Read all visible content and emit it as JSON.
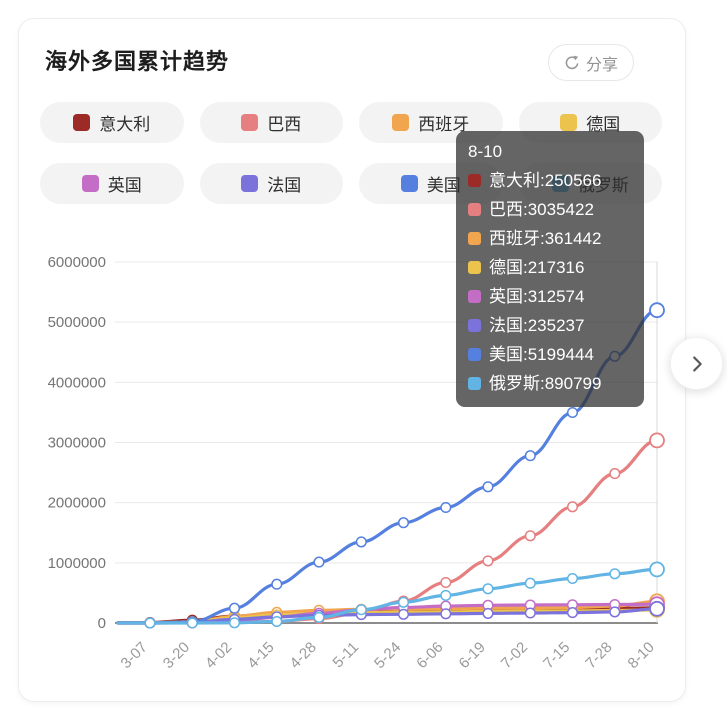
{
  "card": {
    "title": "海外多国累计趋势",
    "share": {
      "label": "分享",
      "icon": "circular-arrow-share-icon"
    }
  },
  "legend": {
    "items": [
      "意大利",
      "巴西",
      "西班牙",
      "德国",
      "英国",
      "法国",
      "美国",
      "俄罗斯"
    ]
  },
  "tooltip": {
    "title": "8-10",
    "rows": [
      {
        "name": "意大利",
        "value": "250566"
      },
      {
        "name": "巴西",
        "value": "3035422"
      },
      {
        "name": "西班牙",
        "value": "361442"
      },
      {
        "name": "德国",
        "value": "217316"
      },
      {
        "name": "英国",
        "value": "312574"
      },
      {
        "name": "法国",
        "value": "235237"
      },
      {
        "name": "美国",
        "value": "5199444"
      },
      {
        "name": "俄罗斯",
        "value": "890799"
      }
    ]
  },
  "nav": {
    "next_icon": "chevron-right"
  },
  "chart_data": {
    "type": "line",
    "title": "海外多国累计趋势",
    "xlabel": "",
    "ylabel": "",
    "x": [
      "3-07",
      "3-20",
      "4-02",
      "4-15",
      "4-28",
      "5-11",
      "5-24",
      "6-06",
      "6-19",
      "7-02",
      "7-15",
      "7-28",
      "8-10"
    ],
    "ylim": [
      0,
      6000000
    ],
    "yticks": [
      0,
      1000000,
      2000000,
      3000000,
      4000000,
      5000000,
      6000000
    ],
    "grid": true,
    "legend_position": "top",
    "highlight_x": "8-10",
    "series": [
      {
        "name": "意大利",
        "color": "#9c2a26",
        "values": [
          5883,
          47021,
          115242,
          165155,
          199414,
          219814,
          229327,
          234531,
          238159,
          240760,
          243506,
          246286,
          250566
        ]
      },
      {
        "name": "巴西",
        "color": "#e57f80",
        "values": [
          20,
          970,
          8044,
          28320,
          73235,
          169594,
          363211,
          672846,
          1032913,
          1448753,
          1931204,
          2483191,
          3035422
        ]
      },
      {
        "name": "西班牙",
        "color": "#f2a54f",
        "values": [
          525,
          20410,
          112065,
          177644,
          210773,
          227436,
          235290,
          241310,
          245938,
          250103,
          258855,
          280610,
          361442
        ]
      },
      {
        "name": "德国",
        "color": "#ecc44d",
        "values": [
          847,
          19848,
          84794,
          134753,
          159119,
          171879,
          180328,
          184923,
          190359,
          195893,
          200456,
          206926,
          217316
        ]
      },
      {
        "name": "英国",
        "color": "#c46dc6",
        "values": [
          209,
          3983,
          33718,
          98476,
          161145,
          219183,
          257154,
          281661,
          294066,
          299300,
          303200,
          307000,
          312574
        ]
      },
      {
        "name": "法国",
        "color": "#7b72dc",
        "values": [
          1000,
          12612,
          59105,
          103573,
          128442,
          139063,
          144900,
          153055,
          160000,
          166960,
          173304,
          185196,
          235237
        ]
      },
      {
        "name": "美国",
        "color": "#5580df",
        "values": [
          435,
          19624,
          245373,
          644188,
          1012582,
          1347881,
          1666828,
          1920061,
          2263651,
          2779953,
          3499398,
          4433410,
          5199444
        ]
      },
      {
        "name": "俄罗斯",
        "color": "#61b4e4",
        "values": [
          10,
          253,
          3548,
          24490,
          93558,
          221344,
          344481,
          458689,
          569063,
          661165,
          739947,
          818120,
          890799
        ]
      }
    ]
  }
}
